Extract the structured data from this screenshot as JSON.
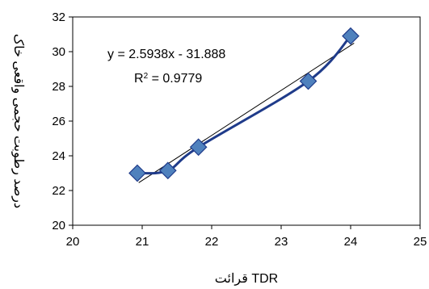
{
  "chart_data": {
    "type": "scatter",
    "xlabel": "قرائت   TDR",
    "ylabel": "درصد رطوبت حجمی واقعی خاک",
    "xlim": [
      20,
      25
    ],
    "ylim": [
      20,
      32
    ],
    "xticks": [
      20,
      21,
      22,
      23,
      24,
      25
    ],
    "yticks": [
      20,
      22,
      24,
      26,
      28,
      30,
      32
    ],
    "grid": false,
    "legend": "none",
    "series": [
      {
        "x": [
          20.93,
          21.37,
          21.81,
          23.39,
          24.0
        ],
        "y": [
          23.0,
          23.15,
          24.5,
          28.3,
          30.9
        ],
        "marker": "diamond",
        "color": "#4f81bd",
        "line_color": "#1f3b8a",
        "smoothed": true
      }
    ],
    "trendline": {
      "type": "linear",
      "slope": 2.5938,
      "intercept": -31.888,
      "equation": "y = 2.5938x - 31.888",
      "r2_label": "R",
      "r2_sup": "2",
      "r2_value": " = 0.9779",
      "color": "#000000"
    }
  }
}
